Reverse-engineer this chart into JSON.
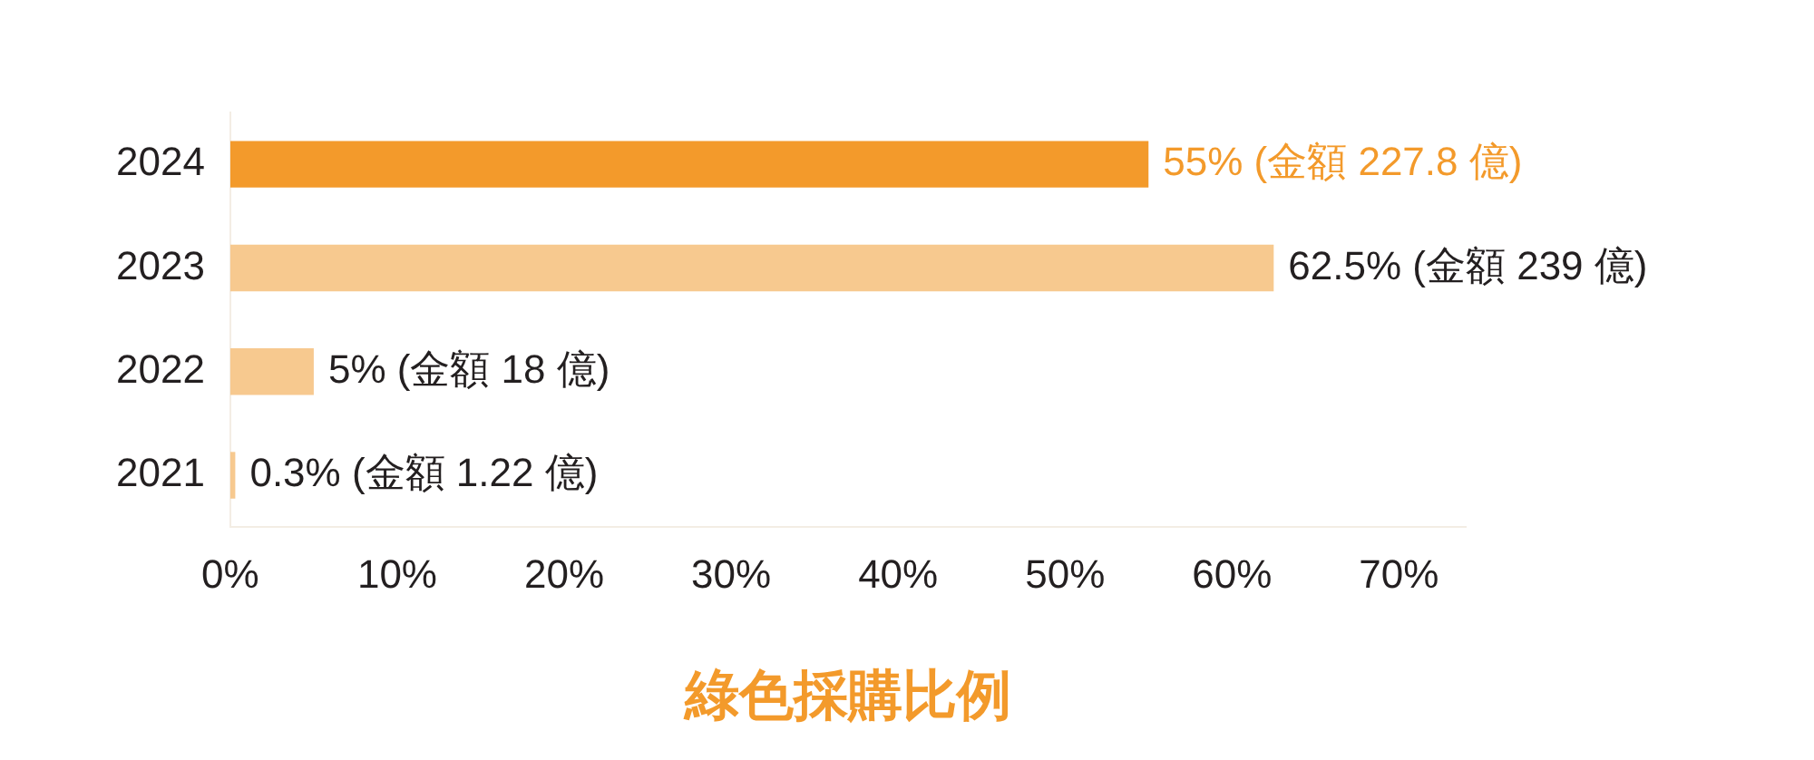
{
  "chart_data": {
    "type": "bar",
    "orientation": "horizontal",
    "xlabel": "綠色採購比例",
    "categories": [
      "2024",
      "2023",
      "2022",
      "2021"
    ],
    "values": [
      55,
      62.5,
      5,
      0.3
    ],
    "colors": [
      "#f39a2b",
      "#f7c98f",
      "#f7c98f",
      "#f7c98f"
    ],
    "value_labels": [
      "55% (金額 227.8 億)",
      "62.5% (金額 239 億)",
      "5% (金額 18 億)",
      "0.3% (金額 1.22 億)"
    ],
    "xlim": [
      0,
      74
    ],
    "xticks": [
      {
        "value": 0,
        "label": "0%"
      },
      {
        "value": 10,
        "label": "10%"
      },
      {
        "value": 20,
        "label": "20%"
      },
      {
        "value": 30,
        "label": "30%"
      },
      {
        "value": 40,
        "label": "40%"
      },
      {
        "value": 50,
        "label": "50%"
      },
      {
        "value": 60,
        "label": "60%"
      },
      {
        "value": 70,
        "label": "70%"
      }
    ],
    "grid": false,
    "legend": false
  }
}
